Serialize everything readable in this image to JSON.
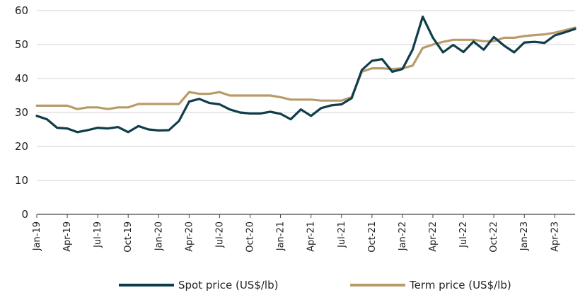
{
  "chart_data": {
    "type": "line",
    "title": "",
    "xlabel": "",
    "ylabel": "",
    "ylim": [
      0,
      60
    ],
    "yticks": [
      0,
      10,
      20,
      30,
      40,
      50,
      60
    ],
    "grid": "horizontal",
    "legend_position": "bottom",
    "x": [
      "Jan-19",
      "Feb-19",
      "Mar-19",
      "Apr-19",
      "May-19",
      "Jun-19",
      "Jul-19",
      "Aug-19",
      "Sep-19",
      "Oct-19",
      "Nov-19",
      "Dec-19",
      "Jan-20",
      "Feb-20",
      "Mar-20",
      "Apr-20",
      "May-20",
      "Jun-20",
      "Jul-20",
      "Aug-20",
      "Sep-20",
      "Oct-20",
      "Nov-20",
      "Dec-20",
      "Jan-21",
      "Feb-21",
      "Mar-21",
      "Apr-21",
      "May-21",
      "Jun-21",
      "Jul-21",
      "Aug-21",
      "Sep-21",
      "Oct-21",
      "Nov-21",
      "Dec-21",
      "Jan-22",
      "Feb-22",
      "Mar-22",
      "Apr-22",
      "May-22",
      "Jun-22",
      "Jul-22",
      "Aug-22",
      "Sep-22",
      "Oct-22",
      "Nov-22",
      "Dec-22",
      "Jan-23",
      "Feb-23",
      "Mar-23",
      "Apr-23",
      "May-23",
      "Jun-23"
    ],
    "x_tick_labels": [
      "Jan-19",
      "Apr-19",
      "Jul-19",
      "Oct-19",
      "Jan-20",
      "Apr-20",
      "Jul-20",
      "Oct-20",
      "Jan-21",
      "Apr-21",
      "Jul-21",
      "Oct-21",
      "Jan-22",
      "Apr-22",
      "Jul-22",
      "Oct-22",
      "Jan-23",
      "Apr-23"
    ],
    "series": [
      {
        "name": "Spot price (US$/lb)",
        "color": "#0f3d4a",
        "values": [
          29.0,
          28.0,
          25.5,
          25.3,
          24.2,
          24.8,
          25.5,
          25.3,
          25.7,
          24.2,
          26.0,
          25.0,
          24.7,
          24.8,
          27.5,
          33.2,
          34.0,
          32.8,
          32.4,
          30.9,
          30.0,
          29.7,
          29.7,
          30.2,
          29.6,
          28.0,
          30.9,
          29.0,
          31.3,
          32.1,
          32.4,
          34.2,
          42.5,
          45.2,
          45.7,
          42.0,
          42.8,
          48.5,
          58.2,
          52.0,
          47.7,
          49.9,
          47.8,
          50.9,
          48.5,
          52.2,
          49.7,
          47.7,
          50.6,
          50.8,
          50.5,
          52.7,
          53.6,
          54.6
        ]
      },
      {
        "name": "Term price (US$/lb)",
        "color": "#b99b6b",
        "values": [
          32.0,
          32.0,
          32.0,
          32.0,
          31.0,
          31.5,
          31.5,
          31.0,
          31.5,
          31.5,
          32.5,
          32.5,
          32.5,
          32.5,
          32.5,
          36.0,
          35.5,
          35.5,
          36.0,
          35.0,
          35.0,
          35.0,
          35.0,
          35.0,
          34.5,
          33.8,
          33.8,
          33.8,
          33.5,
          33.5,
          33.5,
          34.5,
          42.0,
          43.0,
          43.0,
          42.8,
          43.0,
          43.8,
          49.0,
          50.0,
          50.8,
          51.4,
          51.4,
          51.4,
          51.0,
          51.0,
          52.0,
          52.0,
          52.5,
          52.8,
          53.0,
          53.5,
          54.2,
          55.0
        ]
      }
    ]
  }
}
